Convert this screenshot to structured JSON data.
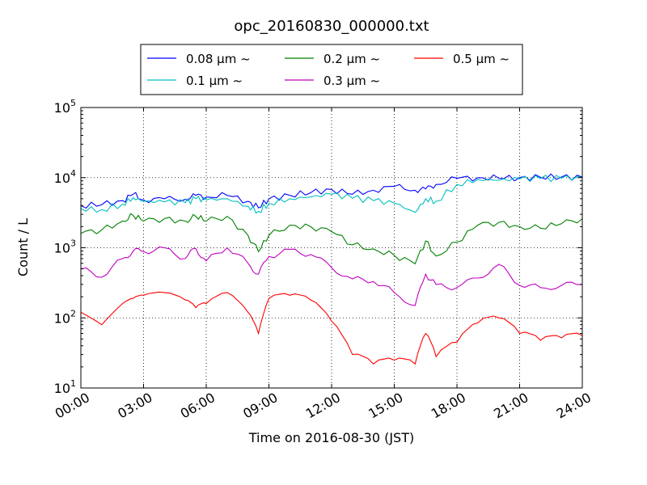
{
  "chart_data": {
    "type": "line",
    "title": "opc_20160830_000000.txt",
    "xlabel": "Time on 2016-08-30 (JST)",
    "ylabel": "Count / L",
    "yscale": "log",
    "xlim": [
      "00:00",
      "24:00"
    ],
    "ylim": [
      10,
      100000
    ],
    "grid": true,
    "legend_position": "top-center (above axes)",
    "x_ticks": [
      "00:00",
      "03:00",
      "06:00",
      "09:00",
      "12:00",
      "15:00",
      "18:00",
      "21:00",
      "24:00"
    ],
    "y_ticks": [
      {
        "value": 10,
        "base": "10",
        "exp": "1"
      },
      {
        "value": 100,
        "base": "10",
        "exp": "2"
      },
      {
        "value": 1000,
        "base": "10",
        "exp": "3"
      },
      {
        "value": 10000,
        "base": "10",
        "exp": "4"
      },
      {
        "value": 100000,
        "base": "10",
        "exp": "5"
      }
    ],
    "x": [
      "00:00",
      "01:00",
      "02:00",
      "02:30",
      "03:00",
      "04:00",
      "05:00",
      "05:30",
      "06:00",
      "07:00",
      "08:00",
      "08:30",
      "09:00",
      "10:00",
      "11:00",
      "12:00",
      "13:00",
      "14:00",
      "15:00",
      "16:00",
      "16:30",
      "17:00",
      "18:00",
      "19:00",
      "20:00",
      "21:00",
      "22:00",
      "23:00",
      "24:00"
    ],
    "series": [
      {
        "name": "0.08 μm ~",
        "color": "#0000ff",
        "values": [
          4000,
          4100,
          4700,
          5800,
          4800,
          5000,
          4900,
          5600,
          5300,
          5600,
          4600,
          3700,
          5000,
          5600,
          6100,
          6800,
          5800,
          6600,
          7500,
          6600,
          6900,
          8000,
          9800,
          10000,
          9800,
          10000,
          10100,
          10200,
          10200
        ]
      },
      {
        "name": "0.1 μm ~",
        "color": "#00bfbf",
        "values": [
          3600,
          3500,
          4200,
          5200,
          4600,
          4500,
          4400,
          5000,
          4800,
          5000,
          3900,
          3300,
          4300,
          5000,
          5300,
          5800,
          5100,
          4700,
          4300,
          3200,
          5000,
          4600,
          8000,
          9400,
          9200,
          9600,
          9700,
          9800,
          9900
        ]
      },
      {
        "name": "0.2 μm ~",
        "color": "#008000",
        "values": [
          1600,
          1800,
          2400,
          2900,
          2400,
          2600,
          2400,
          2800,
          2400,
          2800,
          1500,
          880,
          1500,
          2100,
          2000,
          1700,
          1100,
          960,
          780,
          590,
          1250,
          760,
          1200,
          2100,
          2300,
          2000,
          1900,
          2200,
          2600
        ]
      },
      {
        "name": "0.3 μm ~",
        "color": "#bf00bf",
        "values": [
          500,
          380,
          700,
          900,
          880,
          1000,
          700,
          980,
          650,
          1000,
          600,
          420,
          750,
          950,
          800,
          520,
          360,
          330,
          230,
          150,
          420,
          300,
          270,
          370,
          580,
          290,
          270,
          290,
          300
        ]
      },
      {
        "name": "0.5 μm ~",
        "color": "#ff0000",
        "values": [
          120,
          80,
          160,
          190,
          210,
          230,
          180,
          140,
          160,
          230,
          120,
          60,
          190,
          210,
          180,
          90,
          30,
          22,
          25,
          22,
          60,
          28,
          45,
          85,
          100,
          60,
          48,
          52,
          56
        ]
      }
    ]
  }
}
